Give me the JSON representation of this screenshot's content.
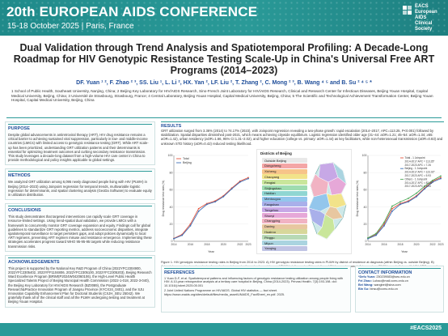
{
  "header": {
    "conference_title": "20th EUROPEAN AIDS CONFERENCE",
    "dates_location": "15-18 October 2025 | Paris, France",
    "logo_lines": [
      "EACS",
      "European",
      "AIDS",
      "Clinical",
      "Society"
    ]
  },
  "paper": {
    "title": "Dual Validation through Trend Analysis and Spatiotemporal Profiling: A Decade-Long Roadmap for HIV Genotypic Resistance Testing Scale-Up in China's Universal Free ART Programs (2014–2023)",
    "authors": "DF. Yuan ¹ ², F. Zhao ² ³, SS. Liu ¹, L. Li ², HX. Yan ², LF. Liu ², T. Zhang ², C. Mong ² ³, B. Wang ⁴ ⁵ and B. Su ² ⁴ ⁵ *",
    "affiliations": "1 School of Public Health, Southeast University, Nanjing, China; 2 Beijing Key Laboratory for HIV/AIDS Research, Sino-French Joint Laboratory for HIV/AIDS Research, Clinical and Research Center for Infectious Diseases, Beijing Youan Hospital, Capital Medical University, Beijing, China; 3 Université de Strasbourg, Strasbourg, France; 4 Central Laboratory, Beijing Youan Hospital, Capital Medical University, Beijing, China; 5 The Scientific and Technological Achievement Transformation Center, Beijing Youan Hospital, Capital Medical University, Beijing, China"
  },
  "sections": {
    "purpose": {
      "heading": "PURPOSE",
      "body": "Despite global advancements in antiretroviral therapy (ART), HIV drug resistance remains a critical barrier to achieving sustained viral suppression, particularly in low- and middle-income countries (LMICs) with limited access to genotypic resistance testing (GRT). While ART scale-up has been prioritized, understanding GRT utilization patterns and their determinants is essential for optimizing treatment outcomes and curbing secondary resistance transmission. This study leverages a decade-long dataset from a high-volume HIV care center in China to provide methodological and policy insights applicable to global settings."
    },
    "methods": {
      "heading": "METHODS",
      "body": "We analyzed GRT utilization among 6,095 newly diagnosed people living with HIV (PLWH) in Beijing (2014–2023) using Joinpoint regression for temporal trends, multivariable logistic regression for determinants, and spatial clustering analysis (GeoDa Software) to evaluate equity in utilization distribution."
    },
    "conclusions": {
      "heading": "CONCLUSIONS",
      "body": "This study demonstrates that targeted interventions can rapidly scale GRT coverage in resource-limited settings. Using trend-spatial dual validation, we provide LMICs with a framework to concurrently monitor GRT coverage expansion and equity. Findings call for global guidelines to standardize GRT reporting metrics, address socioeconomic disparities, integrate spatiotemporal surveillance to target persistent gaps, and adopt policies dynamically to local ART regimens, preventing ART regimen misuse and resistance emergence. Implementing these strategies accelerates progress toward WHO 95-95-95 targets while reducing resistance transmission risks."
    },
    "acknowledgements": {
      "heading": "ACKNOWLEDGEMENTS",
      "body": "This project is supported by the National Key R&D Program of China (2022YFC2304900, 2022YFC2305402, 2023YFF1104806, 2022YFC2305100, 2022YFC2305203), Beijing Research Ward Excellence Program (BRWEP2024W042060106), the High-Level Public Health Specialized Talents Project of Beijing Municipal Health Commission (2022-1-018, 2022-3-040), the Beijing Key Laboratory for HIV/AIDS Research (BZ0089), the Postgraduate Research&Practice Innovation Program of Jiangsu Province (KYCX24_0401), and the SJU Innovation Capability Enhancement Plan for Doctoral Students (CXJH_SEU 25042). We gratefully thank all of the clinical staff and all the PLWH undergoing testing and treatment at Beijing Youan Hospital."
    },
    "results": {
      "heading": "RESULTS",
      "body": "GRT utilization surged from 3.36% (2014) to 74.17% (2023), with Joinpoint regression revealing a two-phase growth: rapid escalation (2014–2017, APC=113.25, P<0.001) followed by stabilization. Spatial disparities diminished post-2021, which means achieving citywide equilibrium. Logistic regression identified older age (31–44: aOR=1.21; 45–54: aOR=1.34; ≥55: aOR=1.42), urban residency (aOR=1.66, 95% CI:1.31–2.02), and higher education (college vs. primary: aOR=1.44) as key facilitators, while non-heterosexual transmission (aOR=0.83) and unknown STD history (aOR=0.42) reduced testing likelihood."
    },
    "figure_caption": "Figure 1. HIV genotypic resistance testing rates in Beijing from 2014 to 2023. A) HIV genotypic resistance testing rates in PLWH by district of residence at diagnosis (within Beijing vs. outside Beijing). B) Joinpoint regression trend analysis of genotypic resistance testing rates by residence of PLWH at diagnosis. Abbreviations: HIV, human immunodeficiency virus; PLWH, people living with HIV; APC, annual percentage change.",
    "references": {
      "heading": "REFERENCES",
      "items": [
        "1 Yuan D-F, et al. Spatiotemporal patterns and influencing factors of genotypic resistance testing utilization among people living with HIV: A 10-year retrospective analysis at a tertiary care hospital in Beijing, China (2014-2023). Pervasi Health. 7(3):193-198. doi: 10.1016/j.hdvet.2025.05.001",
        "2 Joint United Nations Programme on HIV/AIDS. Global HIV statistics — fact sheet. https://www.unaids.org/sites/default/files/media_asset/UNAIDS_FactSheet_en.pdf. 2025."
      ]
    },
    "contact": {
      "heading": "CONTACT INFORMATION",
      "items": [
        {
          "name": "*Defu Yuan:",
          "value": "230239083@seu.edu.cn"
        },
        {
          "name": "Fei Zhao:",
          "value": "Luhao@mail.ccmu.edu.cn"
        },
        {
          "name": "Bei Wang:",
          "value": "wangbei@sina.com"
        },
        {
          "name": "Bin Su:",
          "value": "binsu@ccmu.edu.cn"
        }
      ]
    }
  },
  "map_panel": {
    "title": "Districts of Beijing",
    "outside_label": "Outside Beijing",
    "districts": [
      {
        "name": "Dongcheng",
        "color": "#f4a6a6"
      },
      {
        "name": "Xicheng",
        "color": "#f7c48a"
      },
      {
        "name": "Chaoyang",
        "color": "#f2e38a"
      },
      {
        "name": "Fengtai",
        "color": "#c9e69b"
      },
      {
        "name": "Shijingshan",
        "color": "#9fdcb0"
      },
      {
        "name": "Haidian",
        "color": "#8fd6d2"
      },
      {
        "name": "Mentougou",
        "color": "#93c6ec"
      },
      {
        "name": "Fangshan",
        "color": "#a9b0ea"
      },
      {
        "name": "Tongzhou",
        "color": "#c7a8e6"
      },
      {
        "name": "Shunyi",
        "color": "#e6a8d8"
      },
      {
        "name": "Changping",
        "color": "#f1b3c3"
      },
      {
        "name": "Daxing",
        "color": "#e8c7a0"
      },
      {
        "name": "Huairou",
        "color": "#d7d79a"
      },
      {
        "name": "Pinggu",
        "color": "#b7d9b5"
      },
      {
        "name": "Miyun",
        "color": "#aad4e0"
      },
      {
        "name": "Yanqing",
        "color": "#c0c4e4"
      }
    ]
  },
  "footer": {
    "hashtag": "#EACS2025"
  },
  "chart_data": [
    {
      "type": "line",
      "title": "",
      "xlabel": "Year",
      "ylabel": "Drug resistance test rates (%)",
      "x": [
        2014,
        2015,
        2016,
        2017,
        2018,
        2019,
        2020,
        2021,
        2022,
        2023
      ],
      "ylim": [
        0,
        100
      ],
      "yticks": [
        0,
        20,
        40,
        60,
        80,
        100
      ],
      "legend_position": "top-left",
      "series": [
        {
          "name": "Total",
          "color": "#e2553f",
          "values": [
            3.36,
            8,
            20,
            38,
            44,
            47,
            53,
            62,
            70,
            74.17
          ]
        },
        {
          "name": "Beijing",
          "color": "#3d6fb6",
          "values": [
            3,
            7,
            18,
            35,
            43,
            46,
            52,
            61,
            69,
            73
          ]
        }
      ]
    },
    {
      "type": "line",
      "title": "",
      "xlabel": "Year",
      "ylabel": "Drug resistance test rates (%)",
      "x": [
        2014,
        2015,
        2016,
        2017,
        2018,
        2019,
        2020,
        2021,
        2022,
        2023
      ],
      "ylim": [
        0,
        100
      ],
      "yticks": [
        0,
        20,
        40,
        60,
        80,
        100
      ],
      "legend_position": "top-right",
      "legend": [
        "Total - 1 Joinpoint",
        "2014-2017 APC = 113.25*",
        "2017-2023 APC = 7.26",
        "Beijing - 1 Joinpoint",
        "2014-2017 APC = 123.02*",
        "2017-2023 APC = 5.93",
        "Others - 1 Joinpoint",
        "2014-2017 APC = 82.01*",
        "2017-2023 APC = 9.44"
      ],
      "series": [
        {
          "name": "Total",
          "color": "#e2553f",
          "values": [
            3.36,
            8,
            20,
            38,
            44,
            47,
            53,
            62,
            70,
            74.17
          ]
        },
        {
          "name": "Beijing",
          "color": "#3d6fb6",
          "values": [
            3,
            7,
            18,
            35,
            43,
            46,
            52,
            61,
            69,
            73
          ]
        },
        {
          "name": "Others",
          "color": "#4fa85a",
          "values": [
            4,
            9,
            22,
            41,
            46,
            50,
            56,
            64,
            71,
            76
          ]
        }
      ]
    }
  ]
}
